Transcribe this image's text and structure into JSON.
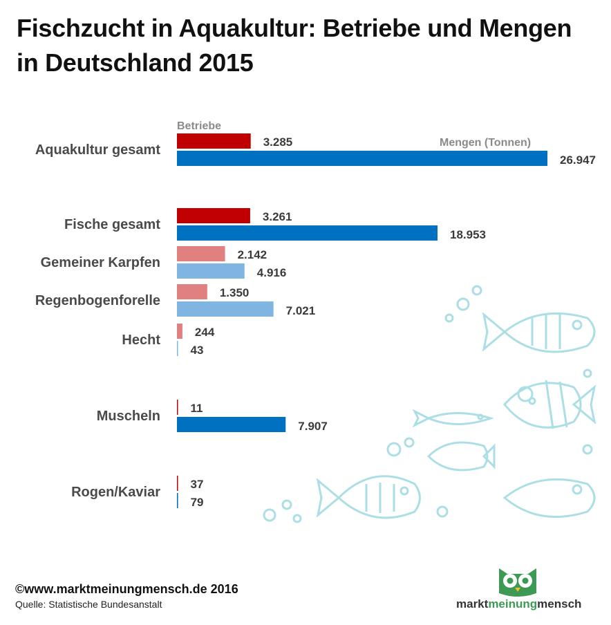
{
  "title": "Fischzucht in Aquakultur: Betriebe und Mengen in Deutschland 2015",
  "chart_data": {
    "type": "bar",
    "orientation": "horizontal",
    "title": "Fischzucht in Aquakultur: Betriebe und Mengen in Deutschland 2015",
    "legend": [
      "Betriebe",
      "Mengen (Tonnen)"
    ],
    "categories": [
      "Aquakultur gesamt",
      "Fische gesamt",
      "Gemeiner Karpfen",
      "Regenbogenforelle",
      "Hecht",
      "Muscheln",
      "Rogen/Kaviar"
    ],
    "series": [
      {
        "name": "Betriebe",
        "values": [
          3285,
          3261,
          2142,
          1350,
          244,
          11,
          37
        ],
        "labels": [
          "3.285",
          "3.261",
          "2.142",
          "1.350",
          "244",
          "11",
          "37"
        ]
      },
      {
        "name": "Mengen (Tonnen)",
        "values": [
          26947,
          18953,
          4916,
          7021,
          43,
          7907,
          79
        ],
        "labels": [
          "26.947",
          "18.953",
          "4.916",
          "7.021",
          "43",
          "7.907",
          "79"
        ]
      }
    ],
    "betriebe_max": 16500,
    "mengen_max": 26947,
    "subcategories": [
      "Gemeiner Karpfen",
      "Regenbogenforelle",
      "Hecht"
    ],
    "colors": {
      "betriebe": "#c00000",
      "betriebe_light": "#e08080",
      "mengen": "#0070c0",
      "mengen_light": "#7fb5e0"
    }
  },
  "footer": {
    "copyright": "©www.marktmeinungmensch.de 2016",
    "source": "Quelle: Statistische Bundesanstalt"
  },
  "logo": {
    "word1": "markt",
    "word2": "meinung",
    "word3": "mensch"
  }
}
